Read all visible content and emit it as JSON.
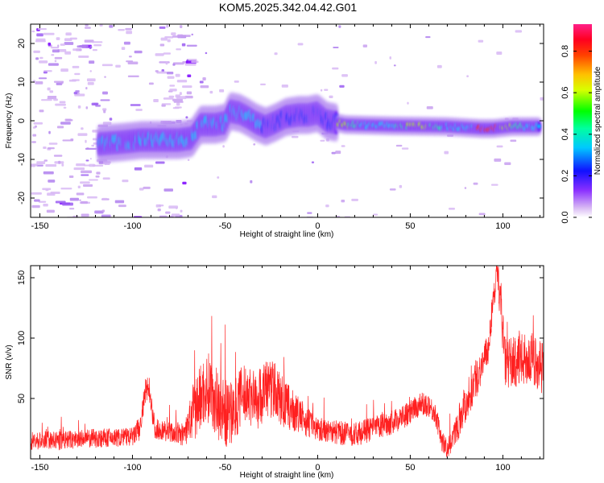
{
  "page_title": "KOM5.2025.342.04.42.G01",
  "chart_data": [
    {
      "type": "heatmap",
      "name": "spectrogram",
      "xlabel": "Height of straight line (km)",
      "ylabel": "Frequency (Hz)",
      "xlim": [
        -155,
        122
      ],
      "ylim": [
        -25,
        25
      ],
      "xticks": [
        -150,
        -100,
        -50,
        0,
        50,
        100
      ],
      "yticks": [
        -20,
        -10,
        0,
        10,
        20
      ],
      "ridge_frequency_points": [
        [
          -118,
          -6
        ],
        [
          -105,
          -5.5
        ],
        [
          -95,
          -5
        ],
        [
          -85,
          -5
        ],
        [
          -75,
          -5
        ],
        [
          -68,
          -4.5
        ],
        [
          -63,
          -1
        ],
        [
          -55,
          -1
        ],
        [
          -50,
          -0.5
        ],
        [
          -47,
          2.5
        ],
        [
          -42,
          2
        ],
        [
          -38,
          1
        ],
        [
          -33,
          -0.5
        ],
        [
          -28,
          -1.5
        ],
        [
          -23,
          -0.5
        ],
        [
          -17,
          1
        ],
        [
          -10,
          1.5
        ],
        [
          -5,
          1.5
        ],
        [
          0,
          2
        ],
        [
          5,
          0
        ],
        [
          15,
          -1
        ],
        [
          40,
          -1.3
        ],
        [
          70,
          -1.5
        ],
        [
          88,
          -2
        ],
        [
          95,
          -2
        ],
        [
          105,
          -1.5
        ],
        [
          120,
          -1.5
        ]
      ],
      "peak_amplitude_region_km": [
        85,
        98
      ],
      "colorbar": {
        "label": "Normalized spectral amplitude",
        "range": [
          0,
          0.93
        ],
        "ticks": [
          0.0,
          0.2,
          0.4,
          0.6,
          0.8
        ],
        "colors": [
          "#ffffff",
          "#c8a0f0",
          "#7a00ff",
          "#0000ff",
          "#00d8ff",
          "#00ff40",
          "#ffff00",
          "#ff8000",
          "#ff0000",
          "#ff1f80"
        ]
      }
    },
    {
      "type": "line",
      "name": "snr",
      "xlabel": "Height of straight line (km)",
      "ylabel": "SNR (v/v)",
      "xlim": [
        -155,
        122
      ],
      "ylim": [
        0,
        160
      ],
      "xticks": [
        -150,
        -100,
        -50,
        0,
        50,
        100
      ],
      "yticks": [
        50,
        100,
        150
      ],
      "color": "#ff2020",
      "baseline_points": [
        [
          -155,
          15
        ],
        [
          -140,
          15
        ],
        [
          -120,
          17
        ],
        [
          -100,
          18
        ],
        [
          -96,
          25
        ],
        [
          -93,
          55
        ],
        [
          -91,
          60
        ],
        [
          -88,
          25
        ],
        [
          -80,
          22
        ],
        [
          -72,
          20
        ],
        [
          -68,
          35
        ],
        [
          -62,
          55
        ],
        [
          -58,
          60
        ],
        [
          -54,
          45
        ],
        [
          -48,
          35
        ],
        [
          -45,
          40
        ],
        [
          -42,
          50
        ],
        [
          -38,
          55
        ],
        [
          -33,
          48
        ],
        [
          -28,
          58
        ],
        [
          -24,
          58
        ],
        [
          -18,
          45
        ],
        [
          -12,
          38
        ],
        [
          -5,
          30
        ],
        [
          0,
          25
        ],
        [
          10,
          22
        ],
        [
          20,
          20
        ],
        [
          30,
          25
        ],
        [
          40,
          30
        ],
        [
          50,
          38
        ],
        [
          55,
          45
        ],
        [
          60,
          45
        ],
        [
          64,
          35
        ],
        [
          67,
          15
        ],
        [
          70,
          8
        ],
        [
          74,
          20
        ],
        [
          78,
          40
        ],
        [
          84,
          60
        ],
        [
          88,
          75
        ],
        [
          92,
          90
        ],
        [
          95,
          135
        ],
        [
          97,
          150
        ],
        [
          99,
          130
        ],
        [
          101,
          80
        ],
        [
          106,
          80
        ],
        [
          112,
          82
        ],
        [
          118,
          80
        ],
        [
          122,
          75
        ]
      ],
      "noise_amplitude_points": [
        [
          -155,
          8
        ],
        [
          -100,
          8
        ],
        [
          -95,
          12
        ],
        [
          -85,
          8
        ],
        [
          -72,
          10
        ],
        [
          -66,
          28
        ],
        [
          -55,
          30
        ],
        [
          -40,
          25
        ],
        [
          -25,
          25
        ],
        [
          -10,
          15
        ],
        [
          0,
          10
        ],
        [
          40,
          10
        ],
        [
          60,
          10
        ],
        [
          70,
          8
        ],
        [
          80,
          18
        ],
        [
          95,
          12
        ],
        [
          101,
          22
        ],
        [
          122,
          22
        ]
      ]
    }
  ]
}
